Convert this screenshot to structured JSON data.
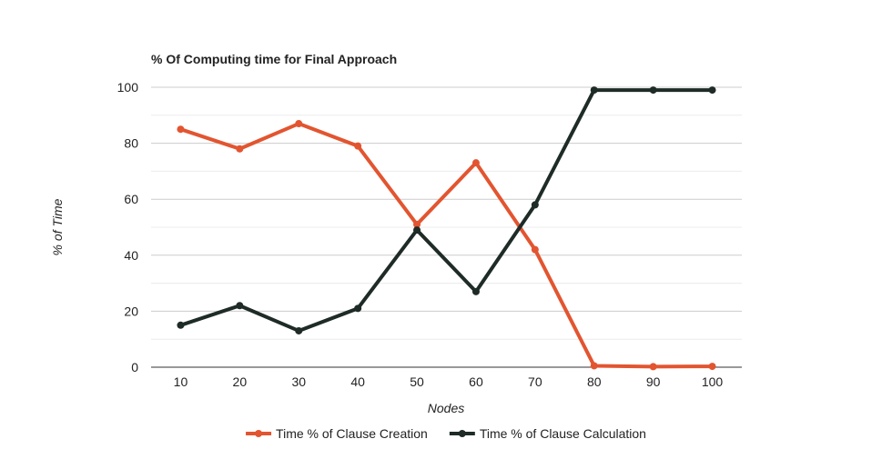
{
  "chart_data": {
    "type": "line",
    "title": "% Of Computing time for Final Approach",
    "xlabel": "Nodes",
    "ylabel": "% of Time",
    "x": [
      10,
      20,
      30,
      40,
      50,
      60,
      70,
      80,
      90,
      100
    ],
    "categories": [
      "10",
      "20",
      "30",
      "40",
      "50",
      "60",
      "70",
      "80",
      "90",
      "100"
    ],
    "ylim": [
      0,
      100
    ],
    "yticks": [
      0,
      20,
      40,
      60,
      80,
      100
    ],
    "grid": true,
    "legend_position": "bottom",
    "series": [
      {
        "name": "Time % of Clause Creation",
        "color": "#e25530",
        "values": [
          85,
          78,
          87,
          79,
          51,
          73,
          42,
          0.5,
          0.2,
          0.3
        ]
      },
      {
        "name": "Time % of Clause Calculation",
        "color": "#1e2b26",
        "values": [
          15,
          22,
          13,
          21,
          49,
          27,
          58,
          99,
          99,
          99
        ]
      }
    ]
  }
}
